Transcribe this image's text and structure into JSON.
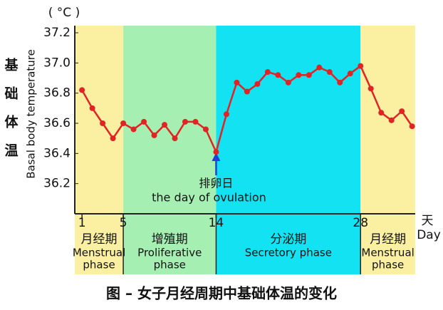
{
  "chart_data": {
    "type": "line",
    "unit": "( °C )",
    "y_label": "Basal body temperature",
    "y_label_cn": "基础体温",
    "x_unit_cn": "天",
    "x_unit": "Day",
    "caption": "图 – 女子月经周期中基础体温的变化",
    "annotation": {
      "x": 14,
      "cn": "排卵日",
      "en": "the day of ovulation"
    },
    "x": [
      1,
      2,
      3,
      4,
      5,
      6,
      7,
      8,
      9,
      10,
      11,
      12,
      13,
      14,
      15,
      16,
      17,
      18,
      19,
      20,
      21,
      22,
      23,
      24,
      25,
      26,
      27,
      28,
      29,
      30,
      31,
      32,
      33
    ],
    "series": [
      {
        "name": "Basal body temperature",
        "color": "#e02424",
        "values": [
          36.82,
          36.7,
          36.6,
          36.5,
          36.6,
          36.56,
          36.61,
          36.52,
          36.59,
          36.5,
          36.61,
          36.61,
          36.56,
          36.41,
          36.66,
          36.87,
          36.81,
          36.86,
          36.94,
          36.92,
          36.87,
          36.92,
          36.92,
          36.97,
          36.94,
          36.87,
          36.93,
          36.98,
          36.83,
          36.67,
          36.62,
          36.68,
          36.58
        ]
      }
    ],
    "xlim": [
      0.3,
      33.3
    ],
    "xticks": [
      1,
      5,
      14,
      28
    ],
    "ylim": [
      36.0,
      37.2
    ],
    "yticks": [
      36.2,
      36.4,
      36.6,
      36.8,
      {
        "value": 37,
        "label": "37.0"
      },
      37.2
    ],
    "phases": [
      {
        "end": 5,
        "cn": "月经期",
        "en": [
          "Menstrual",
          "phase"
        ],
        "color": "#fbf0a2"
      },
      {
        "end": 14,
        "cn": "增殖期",
        "en": [
          "Proliferative",
          "phase"
        ],
        "color": "#a6efb2"
      },
      {
        "end": 28,
        "cn": "分泌期",
        "en": [
          "Secretory phase"
        ],
        "color": "#12e2f2"
      },
      {
        "end": 33.3,
        "cn": "月经期",
        "en": [
          "Menstrual",
          "phase"
        ],
        "color": "#fbf0a2"
      }
    ]
  }
}
